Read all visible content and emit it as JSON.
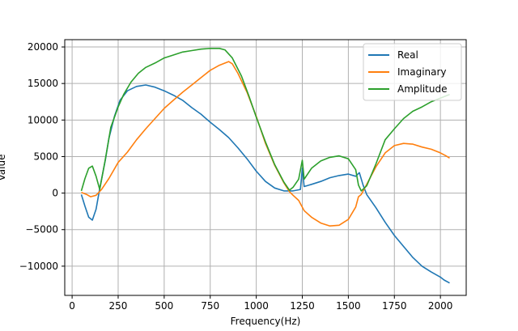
{
  "chart_data": {
    "type": "line",
    "xlabel": "Frequency(Hz)",
    "ylabel": "Value",
    "xlim": [
      -40,
      2140
    ],
    "ylim": [
      -14000,
      21000
    ],
    "xticks": [
      0,
      250,
      500,
      750,
      1000,
      1250,
      1500,
      1750,
      2000
    ],
    "yticks": [
      -10000,
      -5000,
      0,
      5000,
      10000,
      15000,
      20000
    ],
    "grid": true,
    "legend_position": "top-right",
    "series": [
      {
        "name": "Real",
        "color": "#1f77b4",
        "points": [
          [
            50,
            -200
          ],
          [
            70,
            -1800
          ],
          [
            90,
            -3300
          ],
          [
            110,
            -3700
          ],
          [
            130,
            -2200
          ],
          [
            150,
            600
          ],
          [
            180,
            4500
          ],
          [
            200,
            7500
          ],
          [
            230,
            10500
          ],
          [
            260,
            12700
          ],
          [
            300,
            14000
          ],
          [
            350,
            14600
          ],
          [
            400,
            14800
          ],
          [
            450,
            14500
          ],
          [
            500,
            14000
          ],
          [
            550,
            13400
          ],
          [
            600,
            12700
          ],
          [
            650,
            11700
          ],
          [
            700,
            10800
          ],
          [
            750,
            9700
          ],
          [
            800,
            8700
          ],
          [
            850,
            7600
          ],
          [
            900,
            6200
          ],
          [
            950,
            4700
          ],
          [
            1000,
            3000
          ],
          [
            1050,
            1600
          ],
          [
            1100,
            700
          ],
          [
            1150,
            300
          ],
          [
            1200,
            300
          ],
          [
            1240,
            500
          ],
          [
            1250,
            3400
          ],
          [
            1260,
            900
          ],
          [
            1300,
            1200
          ],
          [
            1350,
            1600
          ],
          [
            1400,
            2100
          ],
          [
            1450,
            2400
          ],
          [
            1500,
            2600
          ],
          [
            1540,
            2300
          ],
          [
            1560,
            2800
          ],
          [
            1580,
            1100
          ],
          [
            1600,
            -200
          ],
          [
            1650,
            -2000
          ],
          [
            1700,
            -4000
          ],
          [
            1750,
            -5800
          ],
          [
            1800,
            -7300
          ],
          [
            1850,
            -8800
          ],
          [
            1900,
            -10000
          ],
          [
            1950,
            -10800
          ],
          [
            2000,
            -11500
          ],
          [
            2020,
            -11900
          ],
          [
            2050,
            -12300
          ]
        ]
      },
      {
        "name": "Imaginary",
        "color": "#ff7f0e",
        "points": [
          [
            50,
            100
          ],
          [
            80,
            -200
          ],
          [
            100,
            -500
          ],
          [
            130,
            -300
          ],
          [
            160,
            500
          ],
          [
            200,
            2000
          ],
          [
            250,
            4200
          ],
          [
            300,
            5600
          ],
          [
            350,
            7300
          ],
          [
            400,
            8800
          ],
          [
            450,
            10200
          ],
          [
            500,
            11600
          ],
          [
            550,
            12700
          ],
          [
            600,
            13800
          ],
          [
            650,
            14800
          ],
          [
            700,
            15800
          ],
          [
            750,
            16800
          ],
          [
            800,
            17500
          ],
          [
            850,
            18000
          ],
          [
            870,
            17700
          ],
          [
            900,
            16400
          ],
          [
            950,
            13800
          ],
          [
            1000,
            10500
          ],
          [
            1050,
            6800
          ],
          [
            1100,
            3800
          ],
          [
            1150,
            1400
          ],
          [
            1180,
            200
          ],
          [
            1200,
            -300
          ],
          [
            1230,
            -1000
          ],
          [
            1260,
            -2400
          ],
          [
            1300,
            -3300
          ],
          [
            1350,
            -4100
          ],
          [
            1400,
            -4500
          ],
          [
            1450,
            -4400
          ],
          [
            1500,
            -3600
          ],
          [
            1540,
            -1900
          ],
          [
            1555,
            -500
          ],
          [
            1570,
            -200
          ],
          [
            1600,
            1200
          ],
          [
            1650,
            3600
          ],
          [
            1700,
            5500
          ],
          [
            1750,
            6500
          ],
          [
            1800,
            6800
          ],
          [
            1850,
            6700
          ],
          [
            1900,
            6300
          ],
          [
            1950,
            6000
          ],
          [
            2000,
            5500
          ],
          [
            2030,
            5100
          ],
          [
            2050,
            4800
          ]
        ]
      },
      {
        "name": "Amplitude",
        "color": "#2ca02c",
        "points": [
          [
            50,
            300
          ],
          [
            70,
            2000
          ],
          [
            90,
            3400
          ],
          [
            110,
            3700
          ],
          [
            130,
            2300
          ],
          [
            150,
            500
          ],
          [
            180,
            4600
          ],
          [
            210,
            9000
          ],
          [
            250,
            11800
          ],
          [
            280,
            13500
          ],
          [
            320,
            15200
          ],
          [
            360,
            16400
          ],
          [
            400,
            17200
          ],
          [
            450,
            17800
          ],
          [
            500,
            18500
          ],
          [
            550,
            18900
          ],
          [
            600,
            19300
          ],
          [
            650,
            19500
          ],
          [
            700,
            19700
          ],
          [
            750,
            19800
          ],
          [
            800,
            19800
          ],
          [
            830,
            19600
          ],
          [
            870,
            18500
          ],
          [
            920,
            16000
          ],
          [
            960,
            13300
          ],
          [
            1000,
            10400
          ],
          [
            1050,
            7000
          ],
          [
            1100,
            3900
          ],
          [
            1150,
            1500
          ],
          [
            1180,
            400
          ],
          [
            1200,
            800
          ],
          [
            1230,
            1900
          ],
          [
            1250,
            4500
          ],
          [
            1260,
            1900
          ],
          [
            1300,
            3400
          ],
          [
            1350,
            4400
          ],
          [
            1400,
            4900
          ],
          [
            1450,
            5100
          ],
          [
            1500,
            4700
          ],
          [
            1540,
            3200
          ],
          [
            1555,
            1100
          ],
          [
            1570,
            300
          ],
          [
            1600,
            1000
          ],
          [
            1650,
            4000
          ],
          [
            1700,
            7300
          ],
          [
            1750,
            8800
          ],
          [
            1800,
            10200
          ],
          [
            1850,
            11200
          ],
          [
            1900,
            11800
          ],
          [
            1950,
            12500
          ],
          [
            2000,
            13000
          ],
          [
            2030,
            13300
          ],
          [
            2050,
            13500
          ]
        ]
      }
    ]
  }
}
